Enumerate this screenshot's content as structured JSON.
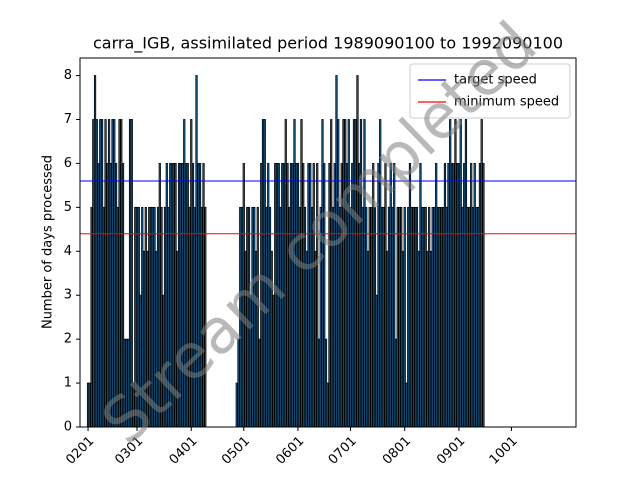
{
  "chart_data": {
    "type": "bar",
    "title": "carra_IGB, assimilated period 1989090100 to 1992090100",
    "y_label": "Number of days processed",
    "watermark": "Stream completed",
    "color": "#1f77b4",
    "edge_color": "#000000",
    "x": [
      0,
      1,
      2,
      3,
      4,
      5,
      6,
      7,
      8,
      9,
      10,
      11,
      12,
      13,
      14,
      15,
      16,
      17,
      18,
      19,
      20,
      21,
      22,
      23,
      24,
      25,
      26,
      27,
      28,
      29,
      30,
      31,
      32,
      33,
      34,
      35,
      36,
      37,
      38,
      39,
      40,
      41,
      42,
      43,
      44,
      45,
      46,
      47,
      48,
      49,
      50,
      51,
      52,
      53,
      54,
      55,
      56,
      57,
      58,
      59,
      60,
      61,
      62,
      63,
      64,
      65,
      66,
      67,
      68,
      69,
      70,
      71,
      72,
      73,
      74,
      75,
      76,
      77,
      78,
      79,
      80,
      81,
      82,
      83,
      84,
      85,
      86,
      87,
      88,
      89,
      90,
      91,
      92,
      93,
      94,
      95,
      96,
      97,
      98,
      99,
      100,
      101,
      102,
      103,
      104,
      105,
      106,
      107,
      108,
      109,
      110,
      111,
      112,
      113,
      114,
      115,
      116,
      117,
      118,
      119,
      120,
      121,
      122,
      123,
      124,
      125,
      126,
      127,
      128,
      129,
      130,
      131,
      132,
      133,
      134,
      135,
      136,
      137,
      138,
      139,
      140,
      141,
      142,
      143,
      144,
      145,
      146,
      147,
      148,
      149,
      150,
      151,
      152,
      153,
      154,
      155,
      156,
      157,
      158,
      159,
      160,
      161,
      162,
      163,
      164,
      165,
      166,
      167,
      168,
      169,
      170,
      171,
      172,
      173,
      174,
      175,
      176,
      177,
      178,
      179,
      180,
      181,
      182,
      183,
      184,
      185,
      186,
      187,
      188,
      189,
      190,
      191,
      192,
      193,
      194,
      195,
      196,
      197,
      198,
      199,
      200,
      201,
      202,
      203,
      204,
      205,
      206,
      207,
      208,
      209,
      210,
      211,
      212,
      213,
      214,
      215,
      216,
      217,
      218,
      219,
      220,
      221,
      222,
      223,
      224,
      225,
      226
    ],
    "values": [
      1,
      1,
      5,
      7,
      8,
      7,
      6,
      7,
      7,
      5,
      7,
      6,
      7,
      6,
      7,
      7,
      6,
      5,
      7,
      7,
      6,
      2,
      2,
      2,
      7,
      7,
      1,
      5,
      5,
      5,
      3,
      5,
      4,
      5,
      4,
      5,
      5,
      5,
      5,
      4,
      5,
      6,
      5,
      3,
      5,
      6,
      5,
      6,
      6,
      6,
      6,
      4,
      6,
      6,
      6,
      7,
      6,
      6,
      5,
      7,
      6,
      5,
      8,
      6,
      6,
      5,
      6,
      5,
      0,
      0,
      0,
      0,
      0,
      0,
      0,
      0,
      0,
      0,
      0,
      0,
      0,
      0,
      0,
      0,
      0,
      1,
      2,
      5,
      5,
      6,
      4,
      5,
      5,
      3,
      5,
      5,
      4,
      5,
      2,
      6,
      7,
      7,
      5,
      6,
      5,
      4,
      3,
      6,
      6,
      6,
      5,
      6,
      6,
      7,
      6,
      5,
      6,
      6,
      7,
      6,
      6,
      5,
      7,
      6,
      5,
      4,
      6,
      6,
      5,
      6,
      4,
      6,
      2,
      5,
      7,
      6,
      2,
      1,
      6,
      7,
      5,
      6,
      8,
      7,
      5,
      6,
      7,
      7,
      6,
      7,
      5,
      6,
      7,
      7,
      8,
      6,
      7,
      5,
      7,
      5,
      4,
      5,
      5,
      6,
      5,
      3,
      6,
      7,
      5,
      5,
      6,
      4,
      5,
      6,
      5,
      6,
      2,
      5,
      5,
      5,
      4,
      5,
      1,
      5,
      6,
      5,
      5,
      5,
      5,
      4,
      6,
      5,
      5,
      5,
      4,
      5,
      4,
      5,
      5,
      6,
      5,
      5,
      5,
      5,
      6,
      5,
      6,
      7,
      6,
      6,
      7,
      6,
      6,
      7,
      5,
      6,
      7,
      5,
      5,
      6,
      5,
      6,
      5,
      5,
      6,
      7,
      6
    ],
    "lines": [
      {
        "name": "target speed",
        "color": "#0000ff",
        "value": 5.6
      },
      {
        "name": "minimum speed",
        "color": "#ff0000",
        "value": 4.4
      }
    ],
    "legend": "upper right",
    "xlim": [
      -4.6,
      278.9
    ],
    "xticks": [
      {
        "value": 0,
        "label": "0201"
      },
      {
        "value": 28,
        "label": "0301"
      },
      {
        "value": 59,
        "label": "0401"
      },
      {
        "value": 89,
        "label": "0501"
      },
      {
        "value": 120,
        "label": "0601"
      },
      {
        "value": 150,
        "label": "0701"
      },
      {
        "value": 181,
        "label": "0801"
      },
      {
        "value": 212,
        "label": "0901"
      },
      {
        "value": 242,
        "label": "1001"
      }
    ],
    "ylim": [
      0,
      8.4
    ],
    "yticks": [
      0,
      1,
      2,
      3,
      4,
      5,
      6,
      7,
      8
    ]
  }
}
